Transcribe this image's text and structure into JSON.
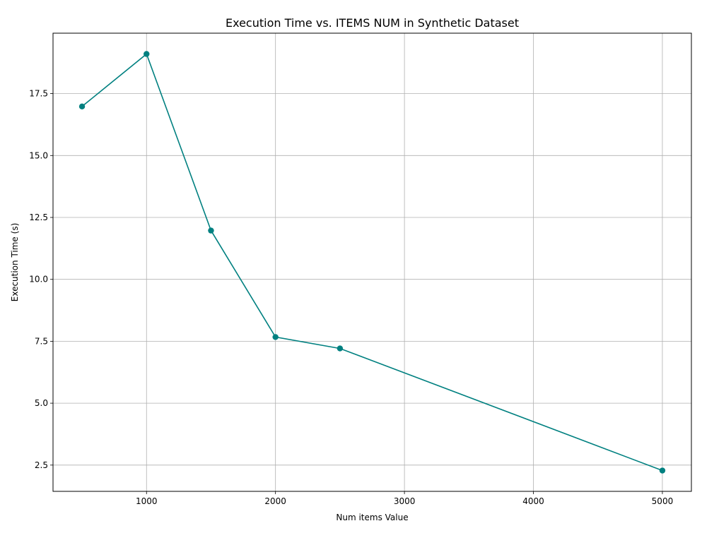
{
  "chart_data": {
    "type": "line",
    "title": "Execution Time vs. ITEMS NUM in Synthetic Dataset",
    "xlabel": "Num items Value",
    "ylabel": "Execution Time (s)",
    "x": [
      500,
      1000,
      1500,
      2000,
      2500,
      5000
    ],
    "series": [
      {
        "values": [
          16.98,
          19.1,
          11.97,
          7.67,
          7.21,
          2.28
        ],
        "color": "#008080"
      }
    ],
    "xlim": [
      275,
      5225
    ],
    "ylim": [
      1.44,
      19.94
    ],
    "xticks": [
      1000,
      2000,
      3000,
      4000,
      5000
    ],
    "xtick_labels": [
      "1000",
      "2000",
      "3000",
      "4000",
      "5000"
    ],
    "yticks": [
      2.5,
      5.0,
      7.5,
      10.0,
      12.5,
      15.0,
      17.5
    ],
    "ytick_labels": [
      "2.5",
      "5.0",
      "7.5",
      "10.0",
      "12.5",
      "15.0",
      "17.5"
    ],
    "grid": true,
    "marker": "circle",
    "line_color": "#008080"
  }
}
